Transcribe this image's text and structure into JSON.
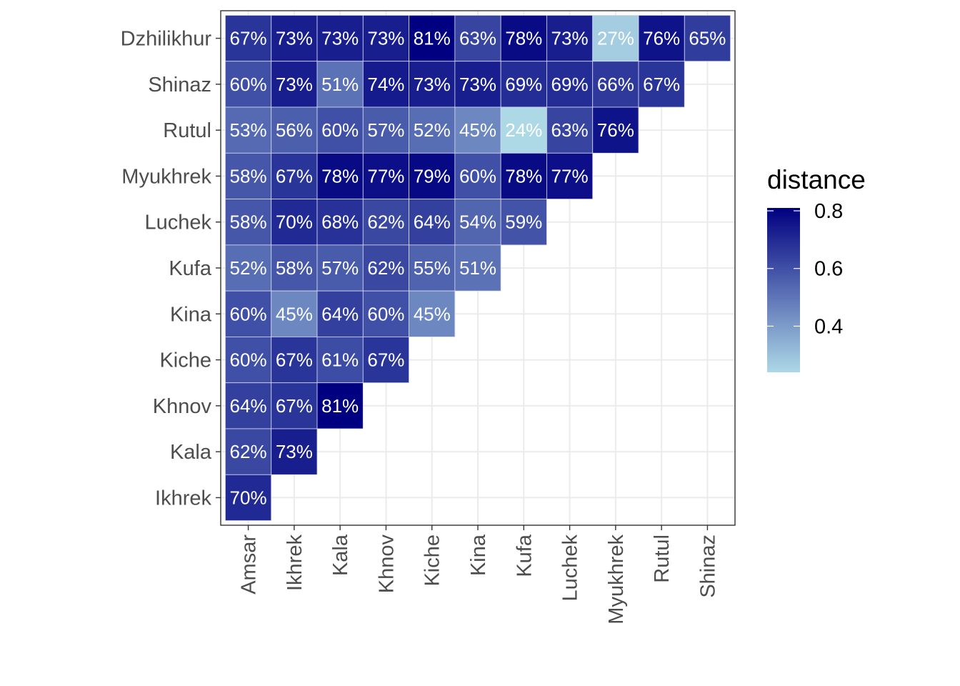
{
  "chart_data": {
    "type": "heatmap",
    "title": "",
    "xlabel": "",
    "ylabel": "",
    "x_categories": [
      "Amsar",
      "Ikhrek",
      "Kala",
      "Khnov",
      "Kiche",
      "Kina",
      "Kufa",
      "Luchek",
      "Myukhrek",
      "Rutul",
      "Shinaz"
    ],
    "y_categories": [
      "Ikhrek",
      "Kala",
      "Khnov",
      "Kiche",
      "Kina",
      "Kufa",
      "Luchek",
      "Myukhrek",
      "Rutul",
      "Shinaz",
      "Dzhilikhur"
    ],
    "rows": [
      {
        "y": "Dzhilikhur",
        "values": [
          0.67,
          0.73,
          0.73,
          0.73,
          0.81,
          0.63,
          0.78,
          0.73,
          0.27,
          0.76,
          0.65
        ],
        "labels": [
          "67%",
          "73%",
          "73%",
          "73%",
          "81%",
          "63%",
          "78%",
          "73%",
          "27%",
          "76%",
          "65%"
        ]
      },
      {
        "y": "Shinaz",
        "values": [
          0.6,
          0.73,
          0.51,
          0.74,
          0.73,
          0.73,
          0.69,
          0.69,
          0.66,
          0.67
        ],
        "labels": [
          "60%",
          "73%",
          "51%",
          "74%",
          "73%",
          "73%",
          "69%",
          "69%",
          "66%",
          "67%"
        ]
      },
      {
        "y": "Rutul",
        "values": [
          0.53,
          0.56,
          0.6,
          0.57,
          0.52,
          0.45,
          0.24,
          0.63,
          0.76
        ],
        "labels": [
          "53%",
          "56%",
          "60%",
          "57%",
          "52%",
          "45%",
          "24%",
          "63%",
          "76%"
        ]
      },
      {
        "y": "Myukhrek",
        "values": [
          0.58,
          0.67,
          0.78,
          0.77,
          0.79,
          0.6,
          0.78,
          0.77
        ],
        "labels": [
          "58%",
          "67%",
          "78%",
          "77%",
          "79%",
          "60%",
          "78%",
          "77%"
        ]
      },
      {
        "y": "Luchek",
        "values": [
          0.58,
          0.7,
          0.68,
          0.62,
          0.64,
          0.54,
          0.59
        ],
        "labels": [
          "58%",
          "70%",
          "68%",
          "62%",
          "64%",
          "54%",
          "59%"
        ]
      },
      {
        "y": "Kufa",
        "values": [
          0.52,
          0.58,
          0.57,
          0.62,
          0.55,
          0.51
        ],
        "labels": [
          "52%",
          "58%",
          "57%",
          "62%",
          "55%",
          "51%"
        ]
      },
      {
        "y": "Kina",
        "values": [
          0.6,
          0.45,
          0.64,
          0.6,
          0.45
        ],
        "labels": [
          "60%",
          "45%",
          "64%",
          "60%",
          "45%"
        ]
      },
      {
        "y": "Kiche",
        "values": [
          0.6,
          0.67,
          0.61,
          0.67
        ],
        "labels": [
          "60%",
          "67%",
          "61%",
          "67%"
        ]
      },
      {
        "y": "Khnov",
        "values": [
          0.64,
          0.67,
          0.81
        ],
        "labels": [
          "64%",
          "67%",
          "81%"
        ]
      },
      {
        "y": "Kala",
        "values": [
          0.62,
          0.73
        ],
        "labels": [
          "62%",
          "73%"
        ]
      },
      {
        "y": "Ikhrek",
        "values": [
          0.7
        ],
        "labels": [
          "70%"
        ]
      }
    ],
    "legend": {
      "title": "distance",
      "placement": "right",
      "ticks": [
        {
          "value": 0.4,
          "label": "0.4"
        },
        {
          "value": 0.6,
          "label": "0.6"
        },
        {
          "value": 0.8,
          "label": "0.8"
        }
      ],
      "range": [
        0.24,
        0.81
      ],
      "low_color": "#add8e6",
      "high_color": "#000080"
    },
    "grid": true,
    "colors": {
      "panel_border": "#333333",
      "grid": "#ebebeb",
      "tick_text": "#4d4d4d",
      "cell_border": "#d9d9f0"
    }
  }
}
